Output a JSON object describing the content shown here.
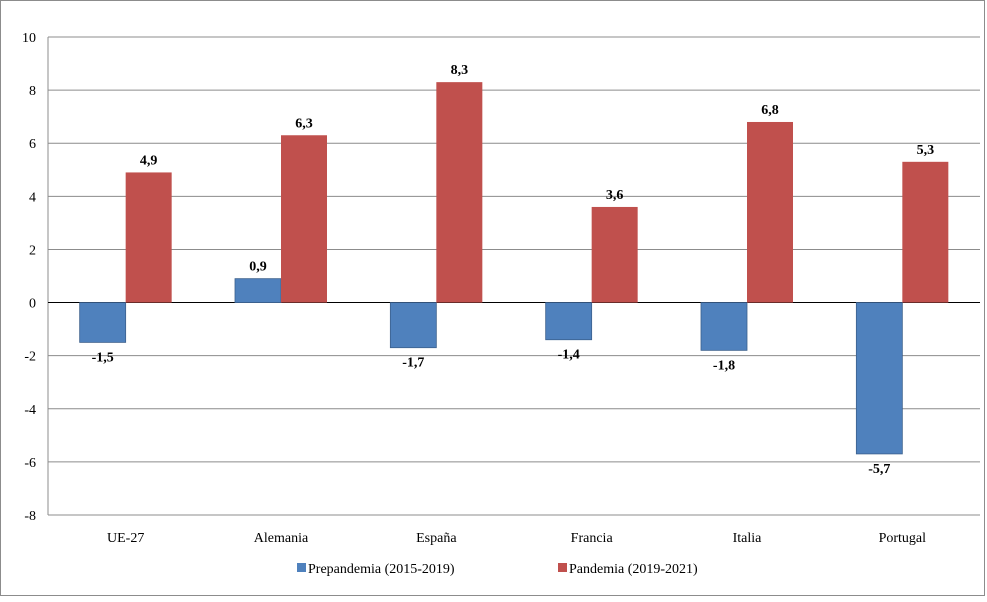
{
  "chart_data": {
    "type": "bar",
    "title": "",
    "xlabel": "",
    "ylabel": "",
    "categories": [
      "UE-27",
      "Alemania",
      "España",
      "Francia",
      "Italia",
      "Portugal"
    ],
    "series": [
      {
        "name": "Prepandemia (2015-2019)",
        "color": "#4f81bd",
        "values": [
          -1.5,
          0.9,
          -1.7,
          -1.4,
          -1.8,
          -5.7
        ],
        "labels": [
          "-1,5",
          "0,9",
          "-1,7",
          "-1,4",
          "-1,8",
          "-5,7"
        ]
      },
      {
        "name": "Pandemia (2019-2021)",
        "color": "#c0504d",
        "values": [
          4.9,
          6.3,
          8.3,
          3.6,
          6.8,
          5.3
        ],
        "labels": [
          "4,9",
          "6,3",
          "8,3",
          "3,6",
          "6,8",
          "5,3"
        ]
      }
    ],
    "ylim": [
      -8,
      10
    ],
    "yticks": [
      -8,
      -6,
      -4,
      -2,
      0,
      2,
      4,
      6,
      8,
      10
    ],
    "ytick_labels": [
      "-8",
      "-6",
      "-4",
      "-2",
      "0",
      "2",
      "4",
      "6",
      "8",
      "10"
    ],
    "grid": true,
    "legend_position": "bottom"
  }
}
